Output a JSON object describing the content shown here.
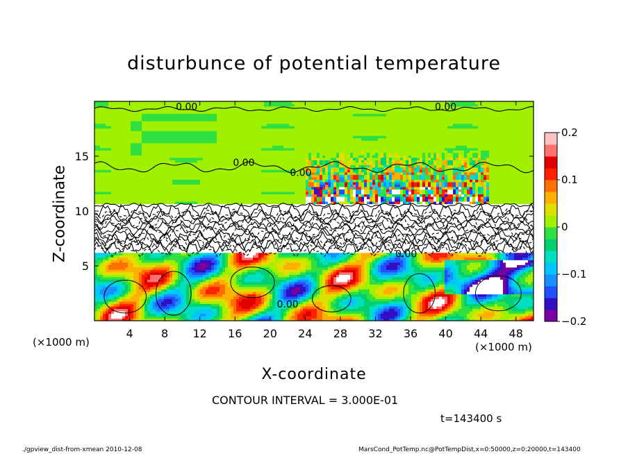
{
  "chart_data": {
    "type": "heatmap",
    "title": "disturbunce of potential temperature",
    "xlabel": "X-coordinate",
    "ylabel": "Z-coordinate",
    "x_unit_label": "(×1000 m)",
    "xlim": [
      0,
      50
    ],
    "ylim": [
      0,
      20
    ],
    "x_ticks": [
      4,
      8,
      12,
      16,
      20,
      24,
      28,
      32,
      36,
      40,
      44,
      48
    ],
    "y_ticks": [
      5,
      10,
      15
    ],
    "contour_labels": [
      {
        "text": "0.00",
        "x": 10.5,
        "z": 19.2
      },
      {
        "text": "0.00",
        "x": 40.0,
        "z": 19.2
      },
      {
        "text": "0.00",
        "x": 17.0,
        "z": 14.1
      },
      {
        "text": "0.00",
        "x": 23.5,
        "z": 13.2
      },
      {
        "text": "0.00",
        "x": 35.5,
        "z": 5.8
      },
      {
        "text": "0.00",
        "x": 22.0,
        "z": 1.2
      }
    ],
    "colorbar": {
      "range": [
        -0.2,
        0.2
      ],
      "tick_labels": [
        "0.2",
        "0.1",
        "0",
        "−0.1",
        "−0.2"
      ],
      "tick_values": [
        0.2,
        0.1,
        0,
        -0.1,
        -0.2
      ],
      "colors": [
        "#7a00a0",
        "#3010c0",
        "#2050ff",
        "#1890ff",
        "#00c8ff",
        "#00e0c0",
        "#00d070",
        "#30e040",
        "#a0f000",
        "#e0e000",
        "#ffb000",
        "#ff7000",
        "#ff2000",
        "#e00000",
        "#ff7070",
        "#ffc0c0"
      ]
    },
    "contour_interval": "CONTOUR INTERVAL = 3.000E-01",
    "grid": false,
    "legend": "colorbar at right"
  },
  "annotations": {
    "time": "t=143400 s",
    "footer_left": "./gpview_dist-from-xmean   2010-12-08",
    "footer_right": "MarsCond_PotTemp.nc@PotTempDist,x=0:50000,z=0:20000,t=143400"
  }
}
